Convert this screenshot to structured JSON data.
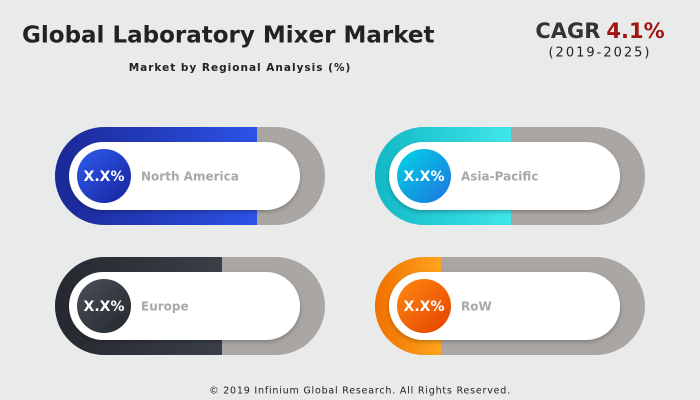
{
  "header": {
    "title": "Global Laboratory Mixer Market",
    "subtitle": "Market by Regional Analysis (%)"
  },
  "cagr": {
    "label": "CAGR",
    "value": "4.1%",
    "period": "(2019-2025)"
  },
  "regions": [
    {
      "name": "North America",
      "value": "X.X%"
    },
    {
      "name": "Asia-Pacific",
      "value": "X.X%"
    },
    {
      "name": "Europe",
      "value": "X.X%"
    },
    {
      "name": "RoW",
      "value": "X.X%"
    }
  ],
  "footer": "© 2019 Infinium Global Research. All Rights Reserved."
}
